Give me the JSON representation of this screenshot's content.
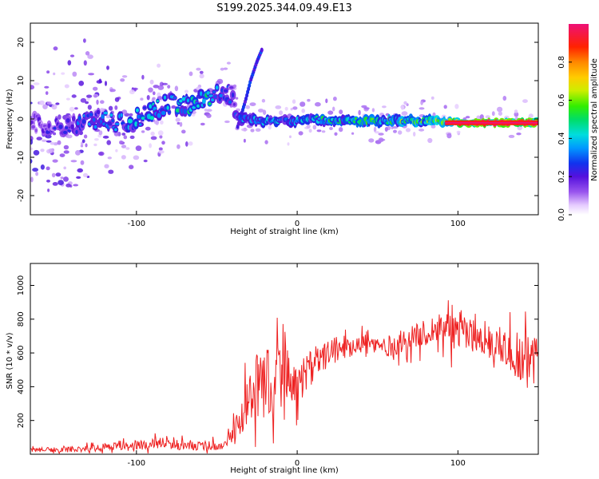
{
  "figure_title": "S199.2025.344.09.49.E13",
  "chart_data": [
    {
      "type": "heatmap",
      "title": "S199.2025.344.09.49.E13",
      "xlabel": "Height of straight line (km)",
      "ylabel": "Frequency (Hz)",
      "xlim": [
        -166,
        150
      ],
      "ylim": [
        -25,
        25
      ],
      "xticks": [
        -100,
        0,
        100
      ],
      "yticks": [
        -20,
        -10,
        0,
        10,
        20
      ],
      "colorbar": {
        "label": "Normalized spectral amplitude",
        "range": [
          0,
          1
        ],
        "ticks": [
          "0.0",
          "0.2",
          "0.4",
          "0.6",
          "0.8"
        ],
        "colormap": "white-purple-blue-cyan-green-yellow-orange-red-pink"
      },
      "ridge": {
        "x": [
          -166,
          -150,
          -140,
          -130,
          -120,
          -110,
          -100,
          -90,
          -80,
          -70,
          -60,
          -50,
          -45,
          -40,
          -37,
          -30,
          -20,
          -10,
          0,
          10,
          20,
          40,
          60,
          80,
          92,
          100,
          120,
          140,
          150
        ],
        "freq": [
          -1,
          -2,
          -2,
          -1,
          0,
          -1,
          0,
          2,
          4,
          3,
          5,
          6,
          7,
          6,
          0,
          0,
          -0.5,
          -0.5,
          -0.5,
          0,
          -0.5,
          -0.5,
          -0.5,
          -0.5,
          -0.5,
          -1,
          -1,
          -1,
          -1
        ],
        "amplitude": [
          0.15,
          0.2,
          0.25,
          0.3,
          0.3,
          0.3,
          0.35,
          0.35,
          0.35,
          0.4,
          0.45,
          0.35,
          0.3,
          0.2,
          0.3,
          0.3,
          0.35,
          0.35,
          0.35,
          0.4,
          0.45,
          0.45,
          0.5,
          0.55,
          0.6,
          0.95,
          0.95,
          0.95,
          0.95
        ]
      },
      "chirp": {
        "x": [
          -37,
          -32,
          -29,
          -25,
          -22
        ],
        "freq": [
          -2,
          5,
          10,
          15,
          18
        ],
        "amplitude": 0.25
      }
    },
    {
      "type": "line",
      "xlabel": "Height of straight line (km)",
      "ylabel": "SNR (10 * v/v)",
      "xlim": [
        -166,
        150
      ],
      "ylim": [
        0,
        1130
      ],
      "xticks": [
        -100,
        0,
        100
      ],
      "yticks": [
        200,
        400,
        600,
        800,
        1000
      ],
      "color": "#ee2222",
      "series": [
        {
          "x": [
            -166,
            -140,
            -120,
            -100,
            -90,
            -80,
            -60,
            -45,
            -40,
            -35,
            -30,
            -25,
            -20,
            -15,
            -10,
            -5,
            0,
            5,
            10,
            15,
            20,
            30,
            40,
            50,
            60,
            70,
            80,
            90,
            95,
            100,
            110,
            120,
            130,
            135,
            140,
            145,
            150
          ],
          "y": [
            25,
            30,
            40,
            50,
            70,
            60,
            50,
            50,
            120,
            220,
            300,
            380,
            420,
            450,
            470,
            480,
            420,
            480,
            520,
            560,
            600,
            640,
            660,
            640,
            640,
            680,
            720,
            760,
            800,
            740,
            700,
            660,
            640,
            600,
            560,
            580,
            560
          ],
          "spread": [
            15,
            20,
            30,
            40,
            50,
            40,
            35,
            35,
            70,
            150,
            200,
            250,
            260,
            250,
            220,
            200,
            170,
            150,
            140,
            120,
            100,
            90,
            80,
            80,
            80,
            90,
            100,
            120,
            200,
            160,
            120,
            120,
            150,
            180,
            200,
            200,
            200
          ]
        }
      ]
    }
  ]
}
